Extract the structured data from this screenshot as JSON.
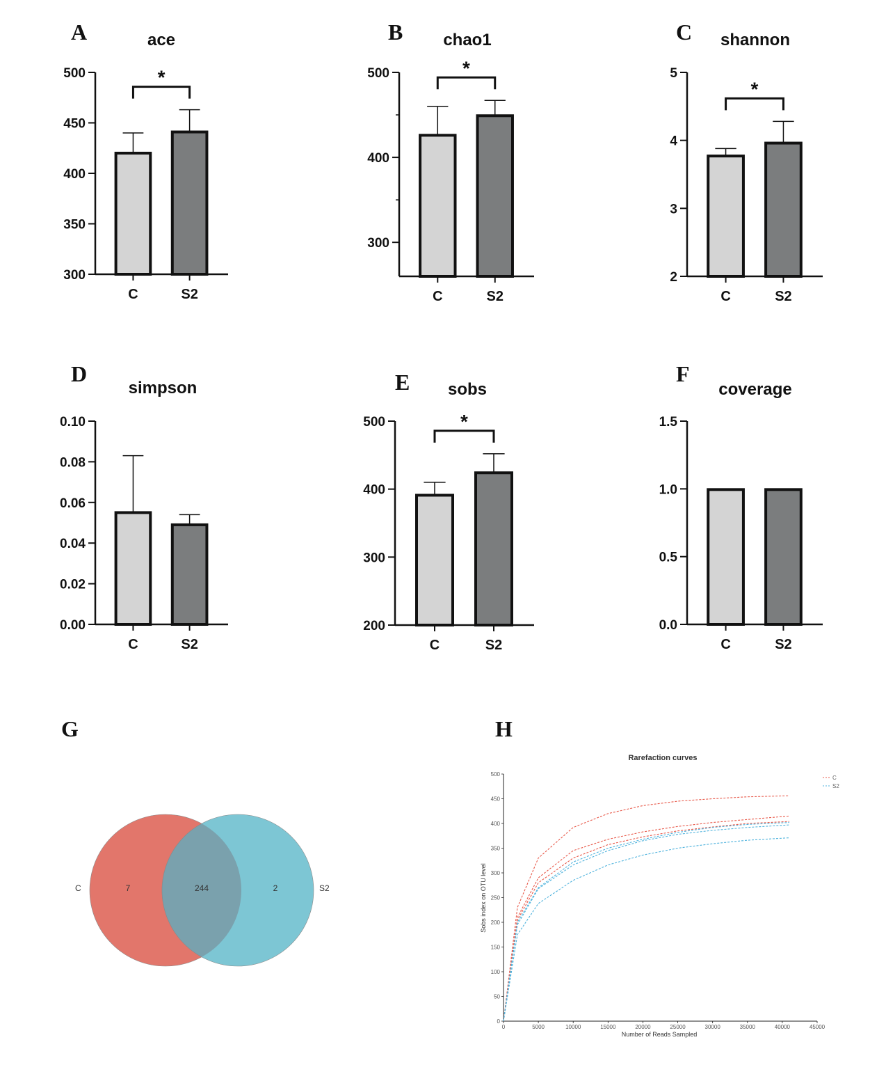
{
  "colors": {
    "C": "#d4d4d4",
    "S2": "#7b7d7e",
    "venn_C": "#e2766b",
    "venn_S2": "#7dc6d4",
    "venn_overlap": "#7aa1ad",
    "rare_C": "#e8594a",
    "rare_S2": "#4fb3dd"
  },
  "panels": [
    {
      "letter": "A",
      "title": "ace",
      "categories": [
        "C",
        "S2"
      ],
      "values": [
        420,
        441
      ],
      "errors": [
        20,
        22
      ],
      "ylim": [
        300,
        500
      ],
      "yticks": [
        300,
        350,
        400,
        450,
        500
      ],
      "tick_labels": [
        "300",
        "350",
        "400",
        "450",
        "500"
      ],
      "minor": false,
      "significance": "*"
    },
    {
      "letter": "B",
      "title": "chao1",
      "categories": [
        "C",
        "S2"
      ],
      "values": [
        426,
        449
      ],
      "errors": [
        34,
        18
      ],
      "ylim": [
        260,
        500
      ],
      "yticks": [
        300,
        400,
        500
      ],
      "tick_labels": [
        "300",
        "400",
        "500"
      ],
      "minor": true,
      "significance": "*"
    },
    {
      "letter": "C",
      "title": "shannon",
      "categories": [
        "C",
        "S2"
      ],
      "values": [
        3.77,
        3.96
      ],
      "errors": [
        0.11,
        0.32
      ],
      "ylim": [
        2,
        5
      ],
      "yticks": [
        2,
        3,
        4,
        5
      ],
      "tick_labels": [
        "2",
        "3",
        "4",
        "5"
      ],
      "minor": false,
      "significance": "*"
    },
    {
      "letter": "D",
      "title": "simpson",
      "categories": [
        "C",
        "S2"
      ],
      "values": [
        0.055,
        0.049
      ],
      "errors": [
        0.028,
        0.005
      ],
      "ylim": [
        0,
        0.1
      ],
      "yticks": [
        0,
        0.02,
        0.04,
        0.06,
        0.08,
        0.1
      ],
      "tick_labels": [
        "0.00",
        "0.02",
        "0.04",
        "0.06",
        "0.08",
        "0.10"
      ],
      "minor": false,
      "significance": ""
    },
    {
      "letter": "E",
      "title": "sobs",
      "categories": [
        "C",
        "S2"
      ],
      "values": [
        391,
        424
      ],
      "errors": [
        19,
        28
      ],
      "ylim": [
        200,
        500
      ],
      "yticks": [
        200,
        300,
        400,
        500
      ],
      "tick_labels": [
        "200",
        "300",
        "400",
        "500"
      ],
      "minor": false,
      "significance": "*"
    },
    {
      "letter": "F",
      "title": "coverage",
      "categories": [
        "C",
        "S2"
      ],
      "values": [
        0.995,
        0.995
      ],
      "errors": [
        0.002,
        0.002
      ],
      "ylim": [
        0,
        1.5
      ],
      "yticks": [
        0,
        0.5,
        1,
        1.5
      ],
      "tick_labels": [
        "0.0",
        "0.5",
        "1.0",
        "1.5"
      ],
      "minor": false,
      "significance": ""
    }
  ],
  "venn": {
    "letter": "G",
    "set_labels": [
      "C",
      "S2"
    ],
    "only_C": "7",
    "shared": "244",
    "only_S2": "2"
  },
  "chart_data": {
    "type": "line",
    "title": "Rarefaction curves",
    "xlabel": "Number of Reads Sampled",
    "ylabel": "Sobs index on OTU level",
    "xlim": [
      0,
      45000
    ],
    "ylim": [
      0,
      500
    ],
    "x_tick_labels": [
      "0",
      "5000",
      "10000",
      "15000",
      "20000",
      "25000",
      "30000",
      "35000",
      "40000",
      "45000"
    ],
    "y_tick_labels": [
      "0",
      "50",
      "100",
      "150",
      "200",
      "250",
      "300",
      "350",
      "400",
      "450",
      "500"
    ],
    "legend": [
      "C",
      "S2"
    ],
    "legend_position": "top-right",
    "series": [
      {
        "name": "C",
        "x": [
          0,
          2000,
          5000,
          10000,
          15000,
          20000,
          25000,
          30000,
          35000,
          41000
        ],
        "y": [
          0,
          230,
          330,
          392,
          420,
          436,
          445,
          450,
          454,
          456
        ]
      },
      {
        "name": "C",
        "x": [
          0,
          2000,
          5000,
          10000,
          15000,
          20000,
          25000,
          30000,
          35000,
          41000
        ],
        "y": [
          0,
          210,
          290,
          345,
          368,
          383,
          394,
          402,
          408,
          415
        ]
      },
      {
        "name": "C",
        "x": [
          0,
          2000,
          5000,
          10000,
          15000,
          20000,
          25000,
          30000,
          35000,
          41000
        ],
        "y": [
          0,
          205,
          280,
          330,
          357,
          373,
          385,
          393,
          400,
          404
        ]
      },
      {
        "name": "S2",
        "x": [
          0,
          2000,
          5000,
          10000,
          15000,
          20000,
          25000,
          30000,
          35000,
          41000
        ],
        "y": [
          0,
          200,
          270,
          322,
          350,
          368,
          382,
          392,
          398,
          402
        ]
      },
      {
        "name": "S2",
        "x": [
          0,
          2000,
          5000,
          10000,
          15000,
          20000,
          25000,
          30000,
          35000,
          41000
        ],
        "y": [
          0,
          195,
          268,
          316,
          345,
          365,
          378,
          386,
          392,
          397
        ]
      },
      {
        "name": "S2",
        "x": [
          0,
          2000,
          5000,
          10000,
          15000,
          20000,
          25000,
          30000,
          35000,
          41000
        ],
        "y": [
          0,
          175,
          238,
          285,
          316,
          336,
          350,
          359,
          366,
          371
        ]
      }
    ],
    "letter": "H"
  }
}
